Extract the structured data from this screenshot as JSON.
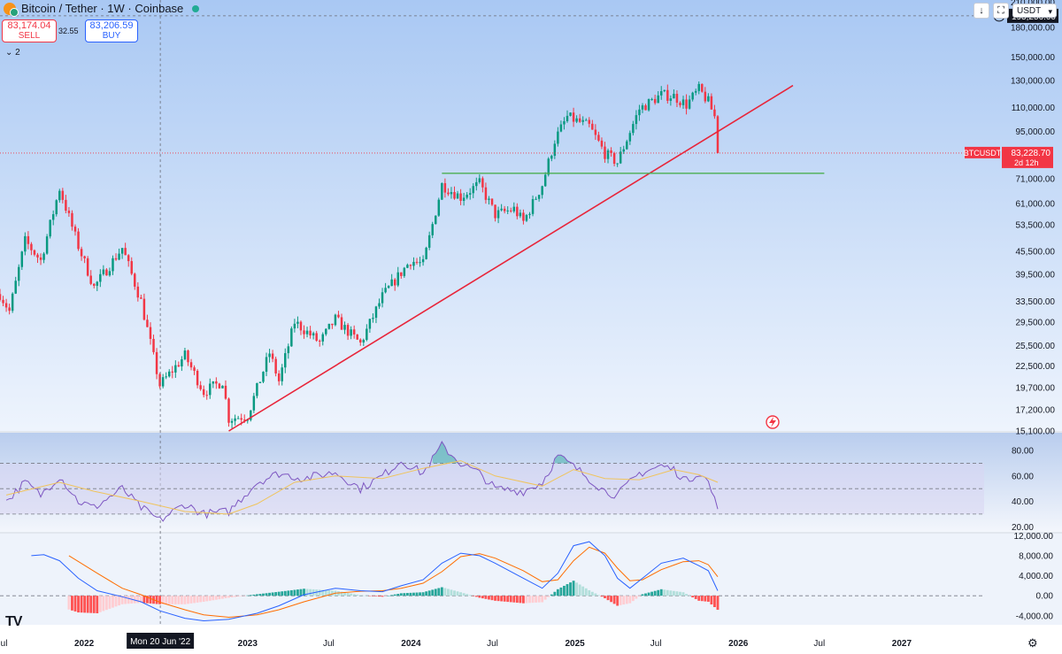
{
  "header": {
    "title": "Bitcoin / Tether · 1W · Coinbase",
    "sell_price": "83,174.04",
    "sell_label": "SELL",
    "spread": "32.55",
    "buy_price": "83,206.59",
    "buy_label": "BUY",
    "indicator_count": "2",
    "currency": "USDT"
  },
  "colors": {
    "up": "#089981",
    "down": "#f23645",
    "trendline": "#e8253a",
    "support": "#4caf50",
    "rsi": "#7e57c2",
    "rsi_ma": "#f0c45c",
    "macd": "#2962ff",
    "signal": "#ff6d00",
    "bg_top": "#a9c8f3",
    "bg_bottom": "#eef4fd"
  },
  "crosshair": {
    "date_label": "Mon 20 Jun '22",
    "price_label": "193,256.00"
  },
  "last_price": {
    "symbol": "BTCUSDT",
    "price": "83,228.70",
    "countdown": "2d 12h"
  },
  "chart_data": [
    {
      "type": "candlestick",
      "title": "Bitcoin / Tether · 1W · Coinbase",
      "y_scale": "log",
      "ylim": [
        15100,
        213000
      ],
      "y_ticks": [
        {
          "value": 15100,
          "label": "15,100.00"
        },
        {
          "value": 17200,
          "label": "17,200.00"
        },
        {
          "value": 19700,
          "label": "19,700.00"
        },
        {
          "value": 22500,
          "label": "22,500.00"
        },
        {
          "value": 25500,
          "label": "25,500.00"
        },
        {
          "value": 29500,
          "label": "29,500.00"
        },
        {
          "value": 33500,
          "label": "33,500.00"
        },
        {
          "value": 39500,
          "label": "39,500.00"
        },
        {
          "value": 45500,
          "label": "45,500.00"
        },
        {
          "value": 53500,
          "label": "53,500.00"
        },
        {
          "value": 61000,
          "label": "61,000.00"
        },
        {
          "value": 71000,
          "label": "71,000.00"
        },
        {
          "value": 95000,
          "label": "95,000.00"
        },
        {
          "value": 110000,
          "label": "110,000.00"
        },
        {
          "value": 130000,
          "label": "130,000.00"
        },
        {
          "value": 150000,
          "label": "150,000.00"
        },
        {
          "value": 180000,
          "label": "180,000.00"
        },
        {
          "value": 210000,
          "label": "210,000.00"
        }
      ],
      "x_range": [
        "2021-06-27",
        "2027-07-04"
      ],
      "x_ticks": [
        {
          "date": "2021-07-01",
          "label": "Jul"
        },
        {
          "date": "2022-01-01",
          "label": "2022"
        },
        {
          "date": "2023-01-01",
          "label": "2023"
        },
        {
          "date": "2023-07-01",
          "label": "Jul"
        },
        {
          "date": "2024-01-01",
          "label": "2024"
        },
        {
          "date": "2024-07-01",
          "label": "Jul"
        },
        {
          "date": "2025-01-01",
          "label": "2025"
        },
        {
          "date": "2025-07-01",
          "label": "Jul"
        },
        {
          "date": "2026-01-01",
          "label": "2026"
        },
        {
          "date": "2026-07-01",
          "label": "Jul"
        },
        {
          "date": "2027-01-01",
          "label": "2027"
        }
      ],
      "price_path": [
        [
          "2021-06-27",
          35000
        ],
        [
          "2021-07-18",
          31500
        ],
        [
          "2021-08-22",
          48500
        ],
        [
          "2021-09-26",
          43000
        ],
        [
          "2021-11-07",
          67000
        ],
        [
          "2021-12-19",
          47000
        ],
        [
          "2022-01-23",
          36500
        ],
        [
          "2022-03-27",
          46500
        ],
        [
          "2022-05-08",
          33500
        ],
        [
          "2022-06-19",
          20000
        ],
        [
          "2022-08-14",
          24000
        ],
        [
          "2022-09-25",
          19200
        ],
        [
          "2022-11-06",
          20500
        ],
        [
          "2022-11-20",
          16300
        ],
        [
          "2023-01-01",
          16600
        ],
        [
          "2023-02-19",
          24400
        ],
        [
          "2023-03-12",
          20500
        ],
        [
          "2023-04-16",
          29500
        ],
        [
          "2023-06-11",
          26000
        ],
        [
          "2023-07-16",
          30000
        ],
        [
          "2023-09-10",
          25800
        ],
        [
          "2023-10-29",
          34500
        ],
        [
          "2023-12-31",
          43000
        ],
        [
          "2024-01-28",
          42000
        ],
        [
          "2024-03-10",
          68500
        ],
        [
          "2024-04-21",
          63500
        ],
        [
          "2024-06-02",
          69000
        ],
        [
          "2024-07-07",
          57000
        ],
        [
          "2024-08-18",
          59000
        ],
        [
          "2024-09-08",
          54500
        ],
        [
          "2024-10-20",
          68500
        ],
        [
          "2024-11-17",
          90000
        ],
        [
          "2024-12-15",
          104000
        ],
        [
          "2025-02-02",
          98000
        ],
        [
          "2025-03-09",
          83000
        ],
        [
          "2025-04-06",
          78500
        ],
        [
          "2025-05-04",
          95000
        ],
        [
          "2025-05-25",
          109000
        ],
        [
          "2025-07-13",
          119000
        ],
        [
          "2025-08-10",
          118000
        ],
        [
          "2025-09-07",
          112000
        ],
        [
          "2025-10-05",
          123000
        ],
        [
          "2025-10-26",
          114000
        ],
        [
          "2025-11-09",
          104000
        ],
        [
          "2025-11-16",
          83229
        ]
      ],
      "last_price": 83228.7,
      "crosshair_price": 193256,
      "trendline": {
        "from": [
          "2022-11-20",
          15100
        ],
        "to": [
          "2026-05-03",
          126000
        ]
      },
      "support_line": {
        "from": [
          "2024-03-10",
          73500
        ],
        "to": [
          "2026-07-12",
          73500
        ]
      }
    },
    {
      "type": "line",
      "title": "RSI",
      "ylim": [
        16,
        94
      ],
      "y_ticks": [
        {
          "value": 20,
          "label": "20.00"
        },
        {
          "value": 40,
          "label": "40.00"
        },
        {
          "value": 60,
          "label": "60.00"
        },
        {
          "value": 80,
          "label": "80.00"
        }
      ],
      "bands": {
        "upper": 70,
        "middle": 50,
        "lower": 30
      },
      "series": [
        {
          "role": "rsi",
          "points": [
            [
              "2021-07-11",
              40
            ],
            [
              "2021-08-22",
              55
            ],
            [
              "2021-09-26",
              45
            ],
            [
              "2021-11-07",
              60
            ],
            [
              "2021-12-19",
              40
            ],
            [
              "2022-01-23",
              35
            ],
            [
              "2022-03-27",
              50
            ],
            [
              "2022-05-08",
              35
            ],
            [
              "2022-06-19",
              25
            ],
            [
              "2022-08-14",
              38
            ],
            [
              "2022-09-25",
              30
            ],
            [
              "2022-11-20",
              32
            ],
            [
              "2023-01-22",
              55
            ],
            [
              "2023-03-12",
              62
            ],
            [
              "2023-05-07",
              58
            ],
            [
              "2023-07-16",
              63
            ],
            [
              "2023-09-10",
              50
            ],
            [
              "2023-10-29",
              60
            ],
            [
              "2023-12-10",
              72
            ],
            [
              "2024-01-28",
              62
            ],
            [
              "2024-03-10",
              84
            ],
            [
              "2024-04-21",
              70
            ],
            [
              "2024-06-02",
              62
            ],
            [
              "2024-07-07",
              50
            ],
            [
              "2024-09-08",
              48
            ],
            [
              "2024-10-20",
              55
            ],
            [
              "2024-11-24",
              76
            ],
            [
              "2025-01-19",
              62
            ],
            [
              "2025-03-09",
              48
            ],
            [
              "2025-04-06",
              45
            ],
            [
              "2025-05-25",
              62
            ],
            [
              "2025-07-13",
              68
            ],
            [
              "2025-08-10",
              65
            ],
            [
              "2025-09-07",
              56
            ],
            [
              "2025-10-05",
              63
            ],
            [
              "2025-10-26",
              55
            ],
            [
              "2025-11-16",
              34
            ]
          ]
        },
        {
          "role": "rsi_ma",
          "points": [
            [
              "2021-07-11",
              45
            ],
            [
              "2021-11-07",
              55
            ],
            [
              "2022-01-23",
              48
            ],
            [
              "2022-05-08",
              40
            ],
            [
              "2022-08-14",
              32
            ],
            [
              "2022-11-20",
              30
            ],
            [
              "2023-01-22",
              38
            ],
            [
              "2023-04-16",
              55
            ],
            [
              "2023-07-16",
              60
            ],
            [
              "2023-10-29",
              58
            ],
            [
              "2024-01-28",
              66
            ],
            [
              "2024-04-21",
              72
            ],
            [
              "2024-07-07",
              60
            ],
            [
              "2024-10-20",
              52
            ],
            [
              "2024-12-29",
              65
            ],
            [
              "2025-03-09",
              58
            ],
            [
              "2025-05-25",
              57
            ],
            [
              "2025-08-10",
              65
            ],
            [
              "2025-10-05",
              61
            ],
            [
              "2025-11-16",
              55
            ]
          ]
        }
      ]
    },
    {
      "type": "line+histogram",
      "title": "MACD",
      "ylim": [
        -5800,
        12400
      ],
      "y_ticks": [
        {
          "value": -4000,
          "label": "-4,000.00"
        },
        {
          "value": 0,
          "label": "0.00"
        },
        {
          "value": 4000,
          "label": "4,000.00"
        },
        {
          "value": 8000,
          "label": "8,000.00"
        },
        {
          "value": 12000,
          "label": "12,000.00"
        }
      ],
      "series": [
        {
          "role": "macd",
          "points": [
            [
              "2021-09-05",
              8000
            ],
            [
              "2021-10-03",
              8200
            ],
            [
              "2021-11-07",
              7000
            ],
            [
              "2021-12-19",
              3500
            ],
            [
              "2022-01-30",
              1000
            ],
            [
              "2022-03-27",
              -200
            ],
            [
              "2022-05-08",
              -1200
            ],
            [
              "2022-06-19",
              -3000
            ],
            [
              "2022-08-14",
              -4500
            ],
            [
              "2022-09-25",
              -5000
            ],
            [
              "2022-11-20",
              -4700
            ],
            [
              "2023-01-22",
              -3500
            ],
            [
              "2023-03-12",
              -2000
            ],
            [
              "2023-05-07",
              200
            ],
            [
              "2023-07-16",
              1500
            ],
            [
              "2023-09-10",
              1000
            ],
            [
              "2023-10-29",
              800
            ],
            [
              "2023-12-10",
              2000
            ],
            [
              "2024-01-28",
              3200
            ],
            [
              "2024-03-10",
              6500
            ],
            [
              "2024-04-21",
              8500
            ],
            [
              "2024-06-02",
              8000
            ],
            [
              "2024-07-07",
              6500
            ],
            [
              "2024-09-08",
              3500
            ],
            [
              "2024-10-20",
              1500
            ],
            [
              "2024-11-24",
              4500
            ],
            [
              "2024-12-29",
              10000
            ],
            [
              "2025-02-02",
              10800
            ],
            [
              "2025-03-09",
              8000
            ],
            [
              "2025-04-06",
              3500
            ],
            [
              "2025-05-04",
              1500
            ],
            [
              "2025-06-01",
              3500
            ],
            [
              "2025-07-13",
              6500
            ],
            [
              "2025-08-31",
              7500
            ],
            [
              "2025-10-05",
              6000
            ],
            [
              "2025-10-26",
              5000
            ],
            [
              "2025-11-16",
              1000
            ]
          ]
        },
        {
          "role": "signal",
          "points": [
            [
              "2021-11-28",
              8000
            ],
            [
              "2022-01-30",
              4500
            ],
            [
              "2022-03-27",
              1500
            ],
            [
              "2022-05-08",
              200
            ],
            [
              "2022-06-19",
              -1300
            ],
            [
              "2022-08-14",
              -2800
            ],
            [
              "2022-09-25",
              -3800
            ],
            [
              "2022-11-20",
              -4300
            ],
            [
              "2023-01-22",
              -3800
            ],
            [
              "2023-03-12",
              -2800
            ],
            [
              "2023-05-07",
              -1200
            ],
            [
              "2023-07-16",
              500
            ],
            [
              "2023-09-10",
              900
            ],
            [
              "2023-10-29",
              1000
            ],
            [
              "2023-12-10",
              1500
            ],
            [
              "2024-01-28",
              2500
            ],
            [
              "2024-03-10",
              4800
            ],
            [
              "2024-04-21",
              7800
            ],
            [
              "2024-06-02",
              8400
            ],
            [
              "2024-07-07",
              7500
            ],
            [
              "2024-09-08",
              5000
            ],
            [
              "2024-10-20",
              2800
            ],
            [
              "2024-11-24",
              3200
            ],
            [
              "2024-12-29",
              7000
            ],
            [
              "2025-02-02",
              9700
            ],
            [
              "2025-03-09",
              8500
            ],
            [
              "2025-04-06",
              5500
            ],
            [
              "2025-05-04",
              3000
            ],
            [
              "2025-06-01",
              3200
            ],
            [
              "2025-07-13",
              5200
            ],
            [
              "2025-08-31",
              6800
            ],
            [
              "2025-10-05",
              7000
            ],
            [
              "2025-10-26",
              6200
            ],
            [
              "2025-11-16",
              3800
            ]
          ]
        }
      ]
    }
  ]
}
